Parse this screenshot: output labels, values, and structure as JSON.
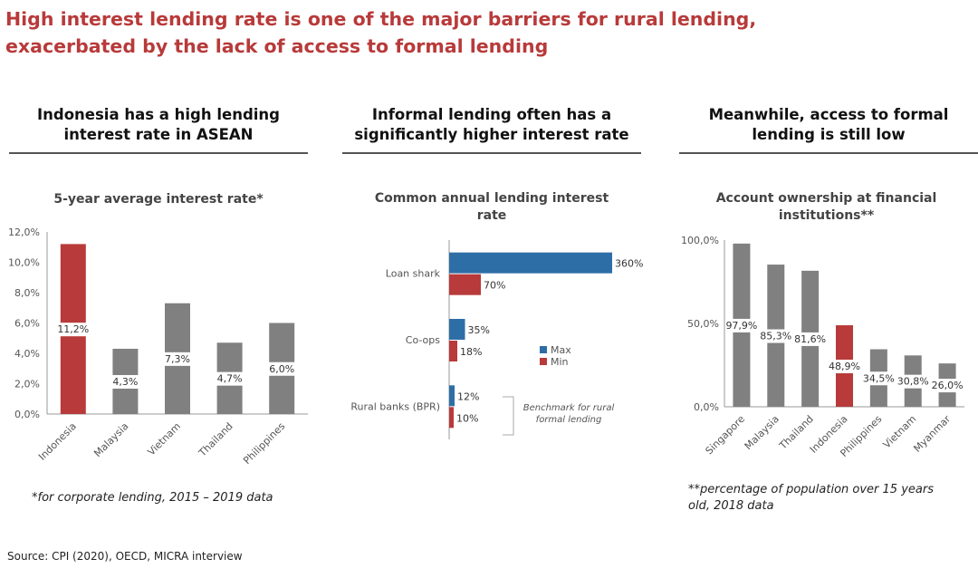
{
  "header": {
    "title_line1": "High interest lending rate is one of the major barriers for rural lending,",
    "title_line2": "exacerbated by the lack of access to formal lending"
  },
  "columns": [
    {
      "heading_line1": "Indonesia has a high lending",
      "heading_line2": "interest rate in ASEAN"
    },
    {
      "heading_line1": "Informal lending often has a",
      "heading_line2": "significantly higher interest rate"
    },
    {
      "heading_line1": "Meanwhile, access to formal",
      "heading_line2": "lending is still low"
    }
  ],
  "notes": {
    "chart1": "*for corporate lending, 2015 – 2019 data",
    "chart3_line1": "**percentage of population over 15 years",
    "chart3_line2": "old, 2018 data",
    "benchmark_line1": "Benchmark for rural",
    "benchmark_line2": "formal lending",
    "source": "Source: CPI (2020), OECD,  MICRA interview"
  },
  "colors": {
    "accent": "#b83a3a",
    "gray": "#808080",
    "blue": "#2e6ea6",
    "title": "#b83a3a"
  },
  "chart_data": [
    {
      "type": "bar",
      "title": "5-year average interest rate*",
      "categories": [
        "Indonesia",
        "Malaysia",
        "Vietnam",
        "Thailand",
        "Philippines"
      ],
      "values": [
        11.2,
        4.3,
        7.3,
        4.7,
        6.0
      ],
      "value_labels": [
        "11,2%",
        "4,3%",
        "7,3%",
        "4,7%",
        "6,0%"
      ],
      "highlight": "Indonesia",
      "yticks": [
        "0,0%",
        "2,0%",
        "4,0%",
        "6,0%",
        "8,0%",
        "10,0%",
        "12,0%"
      ],
      "ylim": [
        0,
        12
      ],
      "grid": false
    },
    {
      "type": "bar",
      "orientation": "horizontal",
      "title": "Common annual lending interest rate",
      "categories": [
        "Loan shark",
        "Co-ops",
        "Rural banks (BPR)"
      ],
      "series": [
        {
          "name": "Max",
          "values": [
            360,
            35,
            12
          ],
          "labels": [
            "360%",
            "35%",
            "12%"
          ]
        },
        {
          "name": "Min",
          "values": [
            70,
            18,
            10
          ],
          "labels": [
            "70%",
            "18%",
            "10%"
          ]
        }
      ],
      "xlim": [
        0,
        360
      ],
      "legend": "right"
    },
    {
      "type": "bar",
      "title": "Account ownership at financial institutions**",
      "categories": [
        "Singapore",
        "Malaysia",
        "Thailand",
        "Indonesia",
        "Philippines",
        "Vietnam",
        "Myanmar"
      ],
      "values": [
        97.9,
        85.3,
        81.6,
        48.9,
        34.5,
        30.8,
        26.0
      ],
      "value_labels": [
        "97,9%",
        "85,3%",
        "81,6%",
        "48,9%",
        "34,5%",
        "30,8%",
        "26,0%"
      ],
      "highlight": "Indonesia",
      "yticks": [
        "0,0%",
        "50,0%",
        "100,0%"
      ],
      "ylim": [
        0,
        100
      ],
      "grid": false
    }
  ]
}
